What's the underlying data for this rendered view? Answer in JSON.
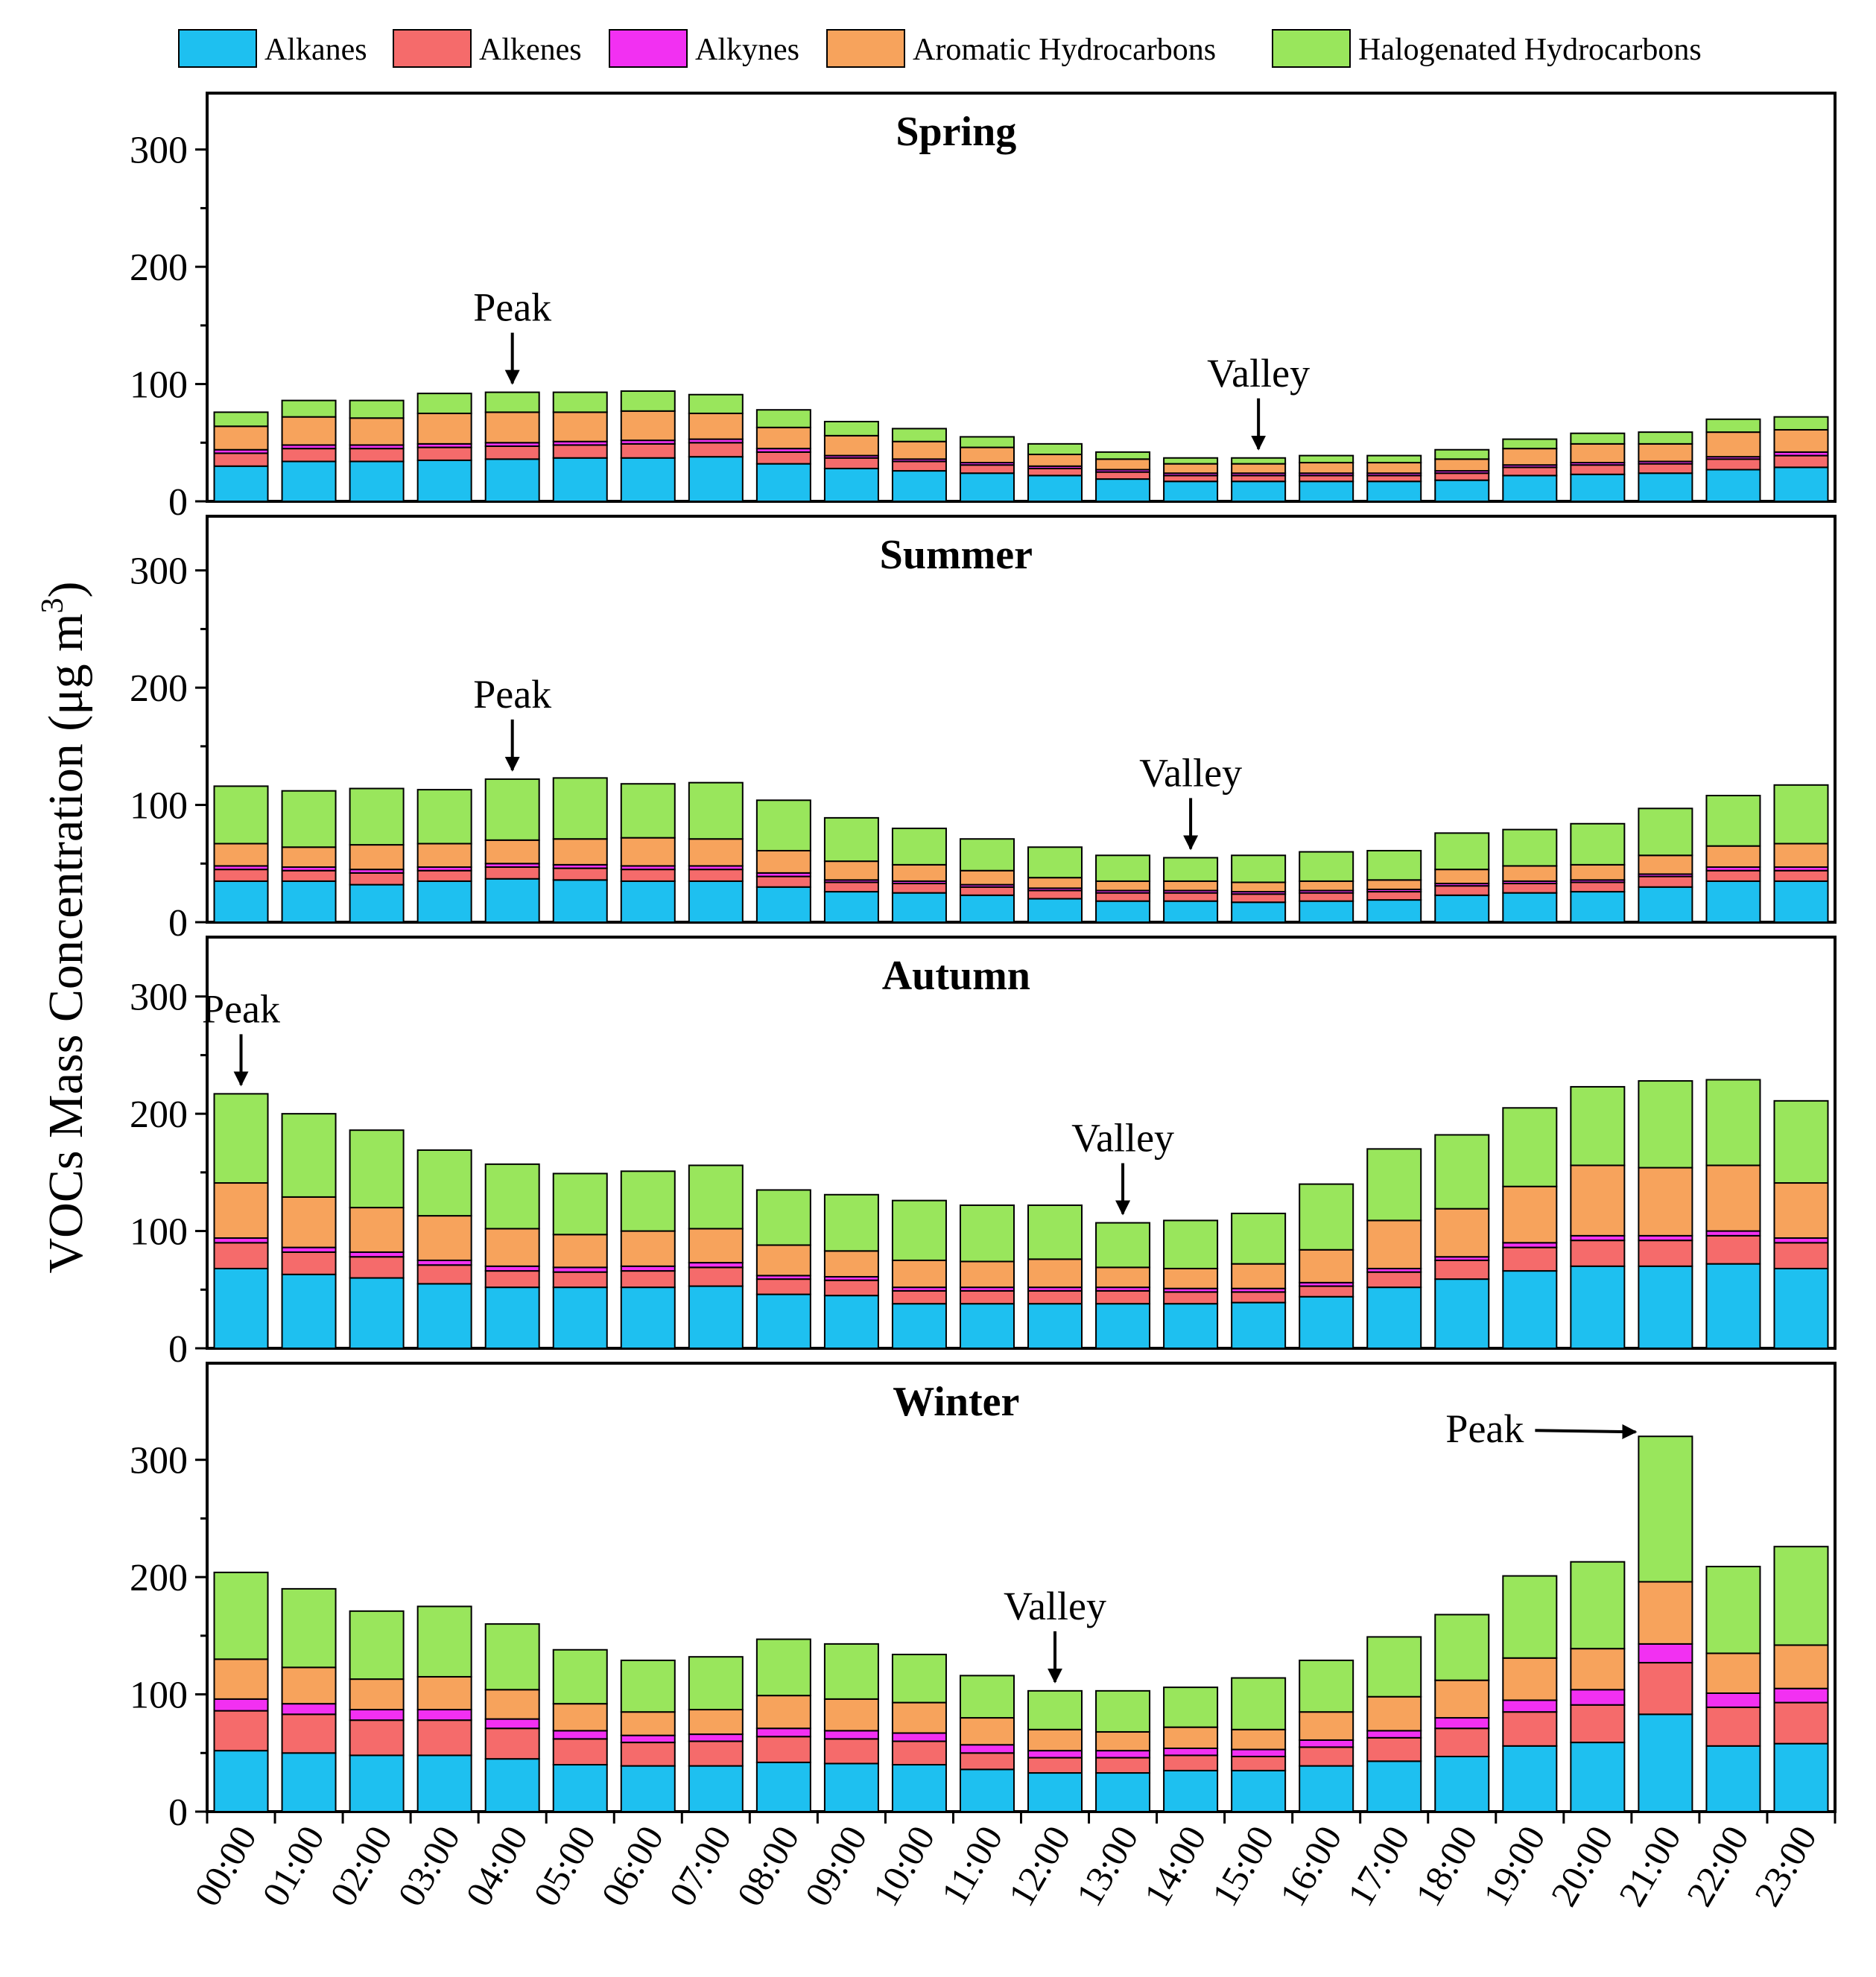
{
  "chart_data": {
    "type": "bar",
    "stacked": true,
    "ylabel": "VOCs Mass Concentration (μg m",
    "ylabel_superscript": "3",
    "xlabel": "",
    "ylim": [
      0,
      350
    ],
    "yticks": [
      "0",
      "100",
      "200",
      "300"
    ],
    "categories": [
      "00:00",
      "01:00",
      "02:00",
      "03:00",
      "04:00",
      "05:00",
      "06:00",
      "07:00",
      "08:00",
      "09:00",
      "10:00",
      "11:00",
      "12:00",
      "13:00",
      "14:00",
      "15:00",
      "16:00",
      "17:00",
      "18:00",
      "19:00",
      "20:00",
      "21:00",
      "22:00",
      "23:00"
    ],
    "legend": [
      {
        "name": "Alkanes",
        "color": "#1ec0f0"
      },
      {
        "name": "Alkenes",
        "color": "#f56b6b"
      },
      {
        "name": "Alkynes",
        "color": "#f230f2"
      },
      {
        "name": "Aromatic Hydrocarbons",
        "color": "#f7a35c"
      },
      {
        "name": "Halogenated Hydrocarbons",
        "color": "#99e65c"
      }
    ],
    "panels": [
      {
        "title": "Spring",
        "series": [
          {
            "name": "Alkanes",
            "values": [
              30,
              34,
              34,
              35,
              36,
              37,
              37,
              38,
              32,
              28,
              26,
              24,
              22,
              19,
              17,
              17,
              17,
              17,
              18,
              22,
              23,
              24,
              27,
              29
            ]
          },
          {
            "name": "Alkenes",
            "values": [
              11,
              11,
              11,
              11,
              11,
              11,
              12,
              12,
              10,
              9,
              8,
              7,
              6,
              6,
              5,
              5,
              5,
              5,
              6,
              7,
              8,
              8,
              9,
              10
            ]
          },
          {
            "name": "Alkynes",
            "values": [
              3,
              3,
              3,
              3,
              3,
              3,
              3,
              3,
              3,
              2,
              2,
              2,
              2,
              2,
              2,
              2,
              2,
              2,
              2,
              2,
              2,
              2,
              2,
              3
            ]
          },
          {
            "name": "Aromatic Hydrocarbons",
            "values": [
              20,
              24,
              23,
              26,
              26,
              25,
              25,
              22,
              18,
              17,
              15,
              13,
              10,
              9,
              8,
              8,
              9,
              9,
              10,
              14,
              16,
              15,
              21,
              19
            ]
          },
          {
            "name": "Halogenated Hydrocarbons",
            "values": [
              12,
              14,
              15,
              17,
              17,
              17,
              17,
              16,
              15,
              12,
              11,
              9,
              9,
              6,
              5,
              5,
              6,
              6,
              8,
              8,
              9,
              10,
              11,
              11
            ]
          }
        ],
        "annotations": [
          {
            "label": "Peak",
            "category": "04:00"
          },
          {
            "label": "Valley",
            "category": "15:00"
          }
        ]
      },
      {
        "title": "Summer",
        "series": [
          {
            "name": "Alkanes",
            "values": [
              35,
              35,
              32,
              35,
              37,
              36,
              35,
              35,
              30,
              26,
              25,
              23,
              20,
              18,
              18,
              17,
              18,
              19,
              23,
              25,
              26,
              30,
              35,
              35
            ]
          },
          {
            "name": "Alkenes",
            "values": [
              10,
              9,
              10,
              9,
              10,
              10,
              10,
              10,
              9,
              8,
              8,
              7,
              7,
              7,
              7,
              7,
              7,
              7,
              8,
              8,
              8,
              9,
              9,
              9
            ]
          },
          {
            "name": "Alkynes",
            "values": [
              3,
              3,
              3,
              3,
              3,
              3,
              3,
              3,
              3,
              2,
              2,
              2,
              2,
              2,
              2,
              2,
              2,
              2,
              2,
              2,
              2,
              2,
              3,
              3
            ]
          },
          {
            "name": "Aromatic Hydrocarbons",
            "values": [
              19,
              17,
              21,
              20,
              20,
              22,
              24,
              23,
              19,
              16,
              14,
              12,
              9,
              8,
              8,
              8,
              8,
              8,
              12,
              13,
              13,
              16,
              18,
              20
            ]
          },
          {
            "name": "Halogenated Hydrocarbons",
            "values": [
              49,
              48,
              48,
              46,
              52,
              52,
              46,
              48,
              43,
              37,
              31,
              27,
              26,
              22,
              20,
              23,
              25,
              25,
              31,
              31,
              35,
              40,
              43,
              50
            ]
          }
        ],
        "annotations": [
          {
            "label": "Peak",
            "category": "04:00"
          },
          {
            "label": "Valley",
            "category": "14:00"
          }
        ]
      },
      {
        "title": "Autumn",
        "series": [
          {
            "name": "Alkanes",
            "values": [
              68,
              63,
              60,
              55,
              52,
              52,
              52,
              53,
              46,
              45,
              38,
              38,
              38,
              38,
              38,
              39,
              44,
              52,
              59,
              66,
              70,
              70,
              72,
              68
            ]
          },
          {
            "name": "Alkenes",
            "values": [
              22,
              19,
              18,
              16,
              14,
              13,
              14,
              16,
              13,
              13,
              11,
              11,
              11,
              11,
              10,
              9,
              9,
              13,
              16,
              20,
              22,
              22,
              24,
              22
            ]
          },
          {
            "name": "Alkynes",
            "values": [
              4,
              4,
              4,
              4,
              4,
              4,
              4,
              4,
              3,
              3,
              3,
              3,
              3,
              3,
              3,
              3,
              3,
              3,
              3,
              4,
              4,
              4,
              4,
              4
            ]
          },
          {
            "name": "Aromatic Hydrocarbons",
            "values": [
              47,
              43,
              38,
              38,
              32,
              28,
              30,
              29,
              26,
              22,
              23,
              22,
              24,
              17,
              17,
              21,
              28,
              41,
              41,
              48,
              60,
              58,
              56,
              47
            ]
          },
          {
            "name": "Halogenated Hydrocarbons",
            "values": [
              76,
              71,
              66,
              56,
              55,
              52,
              51,
              54,
              47,
              48,
              51,
              48,
              46,
              38,
              41,
              43,
              56,
              61,
              63,
              67,
              67,
              74,
              73,
              70
            ]
          }
        ],
        "annotations": [
          {
            "label": "Peak",
            "category": "00:00"
          },
          {
            "label": "Valley",
            "category": "13:00"
          }
        ]
      },
      {
        "title": "Winter",
        "series": [
          {
            "name": "Alkanes",
            "values": [
              52,
              50,
              48,
              48,
              45,
              40,
              39,
              39,
              42,
              41,
              40,
              36,
              33,
              33,
              35,
              35,
              39,
              43,
              47,
              56,
              59,
              83,
              56,
              58
            ]
          },
          {
            "name": "Alkenes",
            "values": [
              34,
              33,
              30,
              30,
              26,
              22,
              20,
              21,
              22,
              21,
              20,
              14,
              13,
              13,
              13,
              12,
              16,
              20,
              24,
              29,
              32,
              44,
              33,
              35
            ]
          },
          {
            "name": "Alkynes",
            "values": [
              10,
              9,
              9,
              9,
              8,
              7,
              6,
              6,
              7,
              7,
              7,
              7,
              6,
              6,
              6,
              6,
              6,
              6,
              9,
              10,
              13,
              16,
              12,
              12
            ]
          },
          {
            "name": "Aromatic Hydrocarbons",
            "values": [
              34,
              31,
              26,
              28,
              25,
              23,
              20,
              21,
              28,
              27,
              26,
              23,
              18,
              16,
              18,
              17,
              24,
              29,
              32,
              36,
              35,
              53,
              34,
              37
            ]
          },
          {
            "name": "Halogenated Hydrocarbons",
            "values": [
              74,
              67,
              58,
              60,
              56,
              46,
              44,
              45,
              48,
              47,
              41,
              36,
              33,
              35,
              34,
              44,
              44,
              51,
              56,
              70,
              74,
              124,
              74,
              84
            ]
          }
        ],
        "annotations": [
          {
            "label": "Valley",
            "category": "12:00"
          },
          {
            "label": "Peak",
            "category": "21:00",
            "arrow": "horizontal"
          }
        ]
      }
    ]
  }
}
